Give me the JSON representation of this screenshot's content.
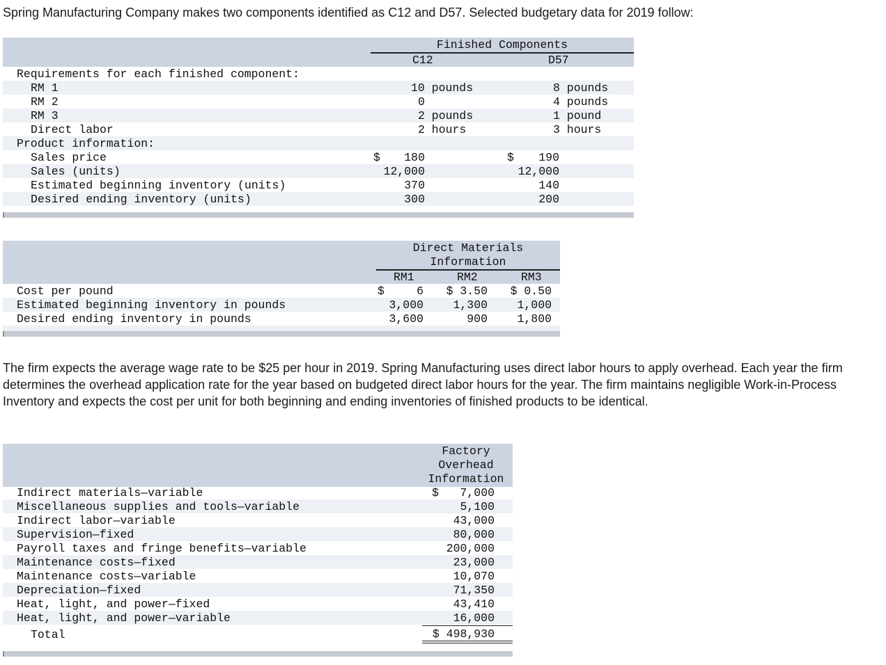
{
  "intro": "Spring Manufacturing Company makes two components identified as C12 and D57. Selected budgetary data for 2019 follow:",
  "table1": {
    "header": "Finished Components",
    "col1": "C12",
    "col2": "D57",
    "section1": "Requirements for each finished component:",
    "section2": "Product information:",
    "rows1": [
      {
        "label": "RM 1",
        "c12": "10 pounds",
        "d57": "8 pounds"
      },
      {
        "label": "RM 2",
        "c12": "0",
        "d57": "4 pounds"
      },
      {
        "label": "RM 3",
        "c12": "2 pounds",
        "d57": "1 pound"
      },
      {
        "label": "Direct labor",
        "c12": "2 hours",
        "d57": "3 hours"
      }
    ],
    "rows2": [
      {
        "label": "Sales price",
        "c12_sym": "$",
        "c12": "180",
        "d57_sym": "$",
        "d57": "190"
      },
      {
        "label": "Sales (units)",
        "c12_sym": "",
        "c12": "12,000",
        "d57_sym": "",
        "d57": "12,000"
      },
      {
        "label": "Estimated beginning inventory (units)",
        "c12_sym": "",
        "c12": "370",
        "d57_sym": "",
        "d57": "140"
      },
      {
        "label": "Desired ending inventory (units)",
        "c12_sym": "",
        "c12": "300",
        "d57_sym": "",
        "d57": "200"
      }
    ]
  },
  "table2": {
    "header1": "Direct Materials",
    "header2": "Information",
    "cols": [
      "RM1",
      "RM2",
      "RM3"
    ],
    "rows": [
      {
        "label": "Cost per pound",
        "rm1_sym": "$",
        "rm1": "6",
        "rm2": "$ 3.50",
        "rm3": "$ 0.50"
      },
      {
        "label": "Estimated beginning inventory in pounds",
        "rm1_sym": "",
        "rm1": "3,000",
        "rm2": "1,300",
        "rm3": "1,000"
      },
      {
        "label": "Desired ending inventory in pounds",
        "rm1_sym": "",
        "rm1": "3,600",
        "rm2": "900",
        "rm3": "1,800"
      }
    ]
  },
  "paragraph": "The firm expects the average wage rate to be $25 per hour in 2019. Spring Manufacturing uses direct labor hours to apply overhead. Each year the firm determines the overhead application rate for the year based on budgeted direct labor hours for the year. The firm maintains negligible Work-in-Process Inventory and expects the cost per unit for both beginning and ending inventories of finished products to be identical.",
  "table3": {
    "header1": "Factory",
    "header2": "Overhead",
    "header3": "Information",
    "rows": [
      {
        "label": "Indirect materials—variable",
        "sym": "$",
        "value": "7,000"
      },
      {
        "label": "Miscellaneous supplies and tools—variable",
        "sym": "",
        "value": "5,100"
      },
      {
        "label": "Indirect labor—variable",
        "sym": "",
        "value": "43,000"
      },
      {
        "label": "Supervision—fixed",
        "sym": "",
        "value": "80,000"
      },
      {
        "label": "Payroll taxes and fringe benefits—variable",
        "sym": "",
        "value": "200,000"
      },
      {
        "label": "Maintenance costs—fixed",
        "sym": "",
        "value": "23,000"
      },
      {
        "label": "Maintenance costs—variable",
        "sym": "",
        "value": "10,070"
      },
      {
        "label": "Depreciation—fixed",
        "sym": "",
        "value": "71,350"
      },
      {
        "label": "Heat, light, and power—fixed",
        "sym": "",
        "value": "43,410"
      },
      {
        "label": "Heat, light, and power—variable",
        "sym": "",
        "value": "16,000"
      }
    ],
    "total_label": "Total",
    "total_value": "$ 498,930"
  }
}
